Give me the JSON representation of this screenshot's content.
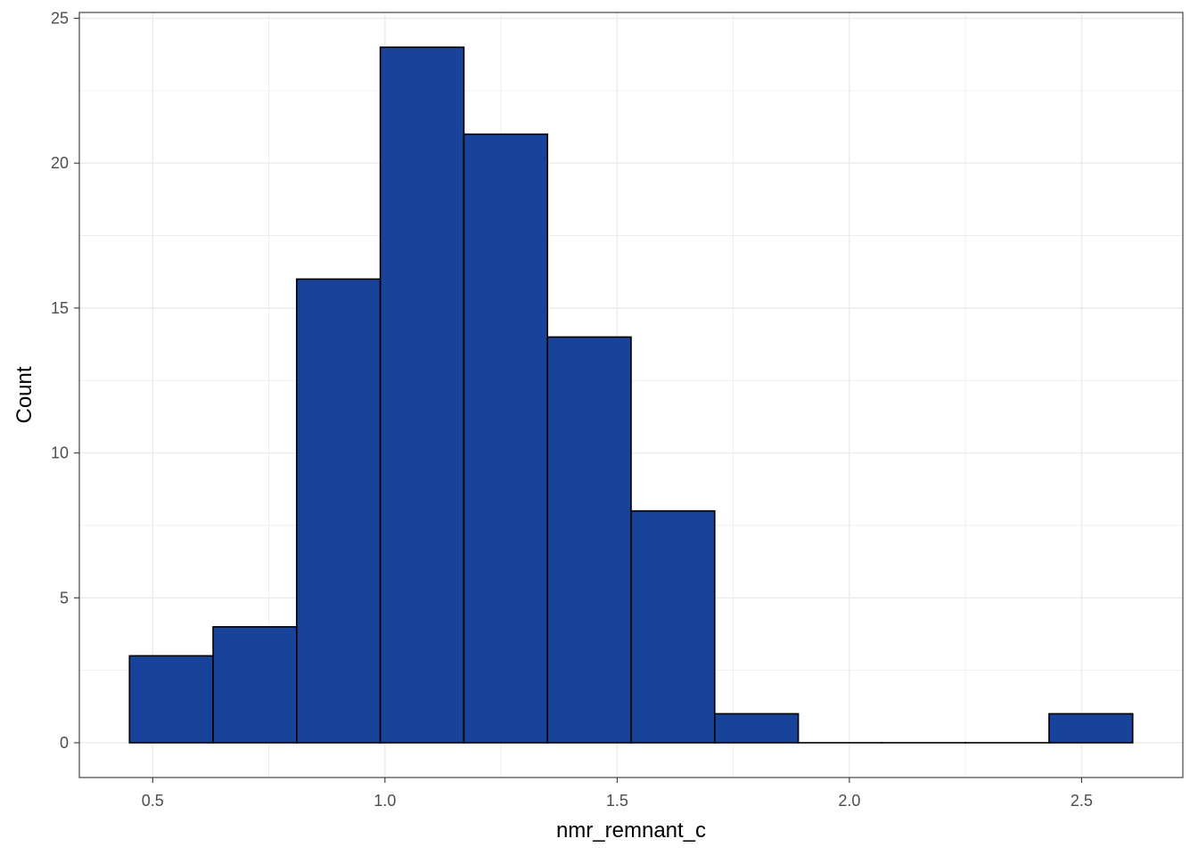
{
  "chart_data": {
    "type": "bar",
    "subtype": "histogram",
    "title": "",
    "xlabel": "nmr_remnant_c",
    "ylabel": "Count",
    "bins": [
      {
        "x0": 0.45,
        "x1": 0.63,
        "count": 3
      },
      {
        "x0": 0.63,
        "x1": 0.81,
        "count": 4
      },
      {
        "x0": 0.81,
        "x1": 0.99,
        "count": 16
      },
      {
        "x0": 0.99,
        "x1": 1.17,
        "count": 24
      },
      {
        "x0": 1.17,
        "x1": 1.35,
        "count": 21
      },
      {
        "x0": 1.35,
        "x1": 1.53,
        "count": 14
      },
      {
        "x0": 1.53,
        "x1": 1.71,
        "count": 8
      },
      {
        "x0": 1.71,
        "x1": 1.89,
        "count": 1
      },
      {
        "x0": 1.89,
        "x1": 2.07,
        "count": 0
      },
      {
        "x0": 2.07,
        "x1": 2.25,
        "count": 0
      },
      {
        "x0": 2.25,
        "x1": 2.43,
        "count": 0
      },
      {
        "x0": 2.43,
        "x1": 2.61,
        "count": 1
      }
    ],
    "xlim": [
      0.342,
      2.718
    ],
    "ylim": [
      -1.2,
      25.2
    ],
    "x_ticks": [
      0.5,
      1.0,
      1.5,
      2.0,
      2.5
    ],
    "x_tick_labels": [
      "0.5",
      "1.0",
      "1.5",
      "2.0",
      "2.5"
    ],
    "y_ticks": [
      0,
      5,
      10,
      15,
      20,
      25
    ],
    "y_tick_labels": [
      "0",
      "5",
      "10",
      "15",
      "20",
      "25"
    ],
    "grid": true,
    "theme": "bw",
    "bar_fill": "#18439a",
    "bar_outline": "#000000",
    "grid_color": "#ebebeb",
    "panel_border": "#333333"
  }
}
